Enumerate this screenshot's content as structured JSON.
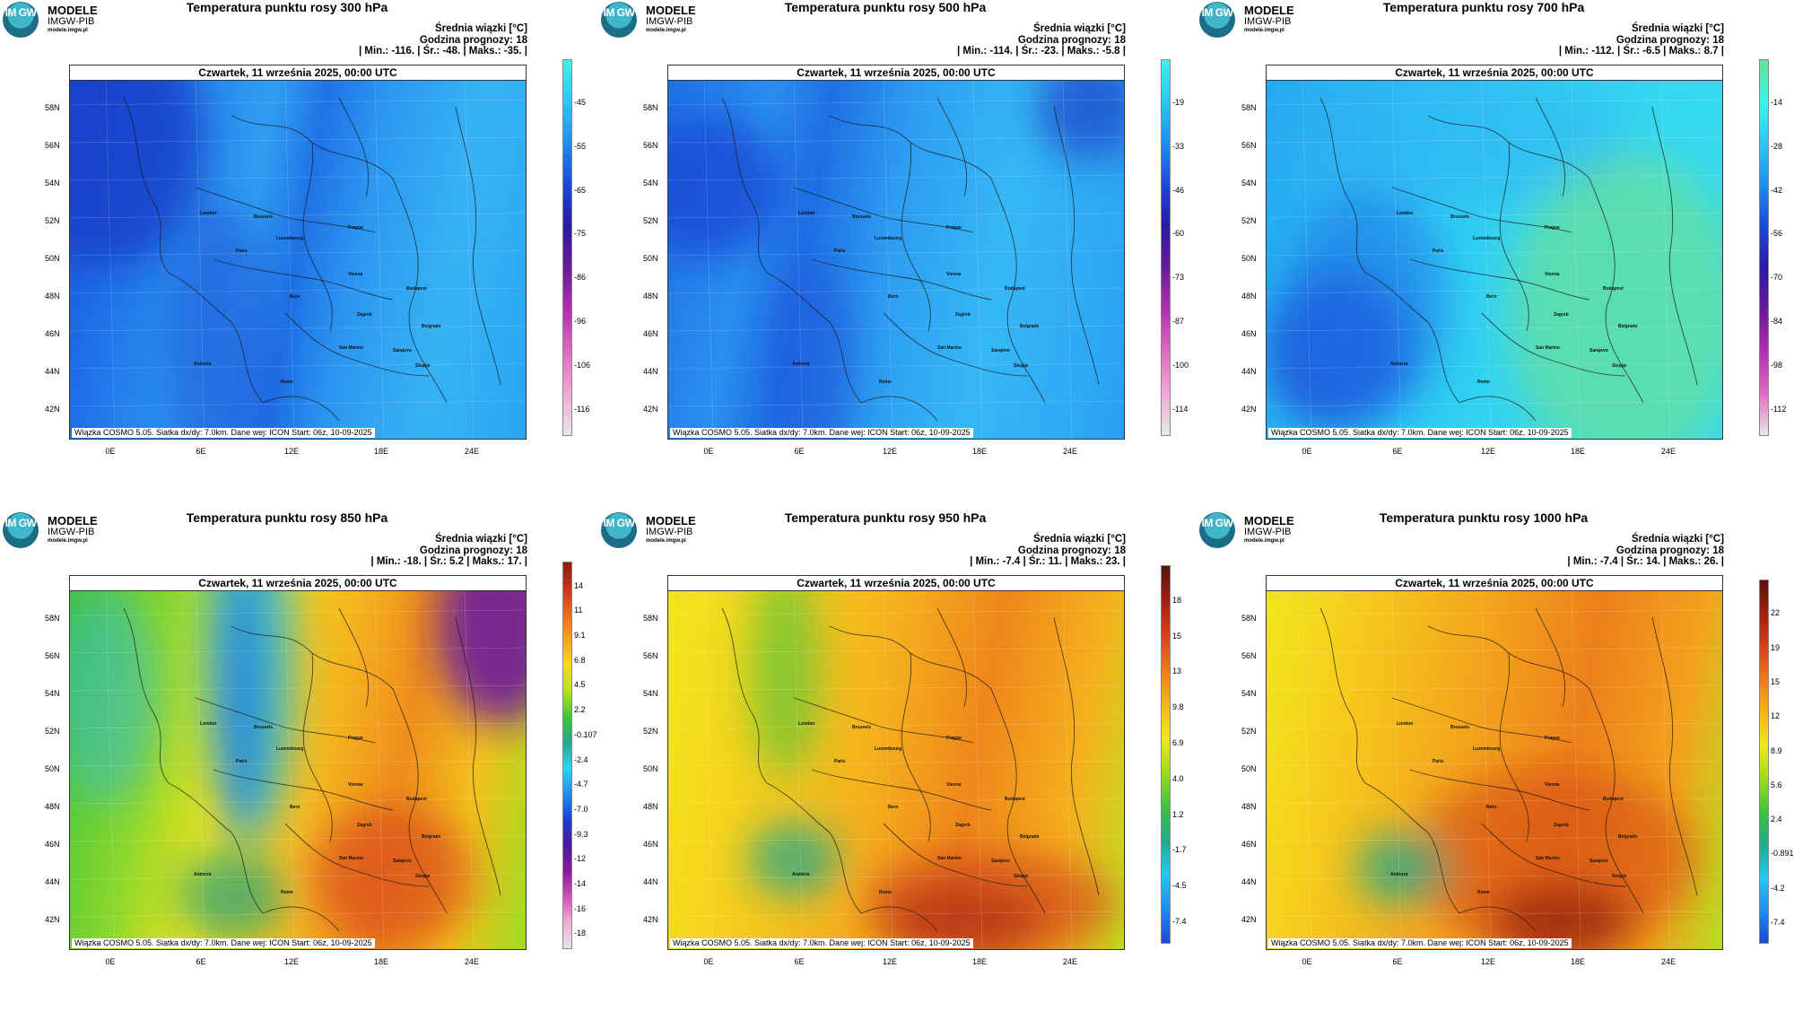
{
  "logo": {
    "badge": "IM GW",
    "title": "MODELE",
    "subtitle": "IMGW-PIB",
    "url": "modele.imgw.pl"
  },
  "stats_labels": {
    "mean": "Średnia wiązki [°C]",
    "forecast_hour": "Godzina prognozy: 18"
  },
  "date_label": "Czwartek, 11 września 2025, 00:00 UTC",
  "footer": "Wiązka COSMO 5.05. Siatka dx/dy: 7.0km. Dane wej: ICON Start: 06z, 10-09-2025",
  "lat_labels": [
    "58N",
    "56N",
    "54N",
    "52N",
    "50N",
    "48N",
    "46N",
    "44N",
    "42N"
  ],
  "lon_labels": [
    "0E",
    "6E",
    "12E",
    "18E",
    "24E"
  ],
  "cities": [
    "London",
    "Brussels",
    "Luxembourg",
    "Paris",
    "Prague",
    "Vienna",
    "Budapest",
    "Bern",
    "Zagreb",
    "Belgrade",
    "San Marino",
    "Sarajevo",
    "Skopje",
    "Andorra",
    "Rome"
  ],
  "panels": [
    {
      "title": "Temperatura punktu rosy 300 hPa",
      "minmax": "| Min.: -116. | Śr.: -48. | Maks.: -35. |",
      "colorbar": [
        "-45",
        "-55",
        "-65",
        "-75",
        "-86",
        "-96",
        "-106",
        "-116"
      ],
      "colorbar_colors": [
        "#3ff2ea",
        "#2ec6f2",
        "#1e8df0",
        "#1c47d8",
        "#2a1ba3",
        "#6a1a9c",
        "#b32fb0",
        "#e26ac2",
        "#f0a8d6",
        "#e8e8e8"
      ],
      "field": "cold300"
    },
    {
      "title": "Temperatura punktu rosy 500 hPa",
      "minmax": "| Min.: -114. | Śr.: -23. | Maks.: -5.8 |",
      "colorbar": [
        "-19",
        "-33",
        "-46",
        "-60",
        "-73",
        "-87",
        "-100",
        "-114"
      ],
      "colorbar_colors": [
        "#3ff2ea",
        "#2ec6f2",
        "#1e8df0",
        "#1c47d8",
        "#2a1ba3",
        "#6a1a9c",
        "#b32fb0",
        "#e26ac2",
        "#f0a8d6",
        "#e8e8e8"
      ],
      "field": "cold500"
    },
    {
      "title": "Temperatura punktu rosy 700 hPa",
      "minmax": "| Min.: -112. | Śr.: -6.5 | Maks.: 8.7 |",
      "colorbar": [
        "-14",
        "-28",
        "-42",
        "-56",
        "-70",
        "-84",
        "-98",
        "-112"
      ],
      "colorbar_colors": [
        "#5fe39a",
        "#3ff2ea",
        "#2ec6f2",
        "#1e8df0",
        "#1c47d8",
        "#2a1ba3",
        "#6a1a9c",
        "#b32fb0",
        "#e26ac2",
        "#e8e8e8"
      ],
      "field": "cold700"
    },
    {
      "title": "Temperatura punktu rosy 850 hPa",
      "minmax": "| Min.: -18. | Śr.: 5.2 | Maks.: 17. |",
      "colorbar": [
        "14",
        "11",
        "9.1",
        "6.8",
        "4.5",
        "2.2",
        "-0.107",
        "-2.4",
        "-4.7",
        "-7.0",
        "-9.3",
        "-12",
        "-14",
        "-16",
        "-18"
      ],
      "colorbar_colors": [
        "#8a1c0c",
        "#c8321a",
        "#ee6a1a",
        "#f6a21d",
        "#f6dc1c",
        "#b8e11d",
        "#3fc43a",
        "#22a98c",
        "#29d5f0",
        "#1e8df0",
        "#1c3fd1",
        "#4a1aa0",
        "#8a1a9c",
        "#d14fb8",
        "#f0b0d8",
        "#e6e6e6"
      ],
      "field": "warm850"
    },
    {
      "title": "Temperatura punktu rosy 950 hPa",
      "minmax": "| Min.: -7.4 | Śr.: 11. | Maks.: 23. |",
      "colorbar": [
        "18",
        "15",
        "13",
        "9.8",
        "6.9",
        "4.0",
        "1.2",
        "-1.7",
        "-4.5",
        "-7.4"
      ],
      "colorbar_colors": [
        "#5a1208",
        "#a2200f",
        "#d4401a",
        "#ee7a1a",
        "#f6b41d",
        "#f2e61c",
        "#9fdc22",
        "#3fc43a",
        "#22a98c",
        "#29c8f0",
        "#1e8df0",
        "#1c47d8"
      ],
      "field": "warm950"
    },
    {
      "title": "Temperatura punktu rosy 1000 hPa",
      "minmax": "| Min.: -7.4 | Śr.: 14. | Maks.: 26. |",
      "colorbar": [
        "22",
        "19",
        "15",
        "12",
        "8.9",
        "5.6",
        "2.4",
        "-0.891",
        "-4.2",
        "-7.4"
      ],
      "colorbar_colors": [
        "#5a1208",
        "#a2200f",
        "#d4401a",
        "#ee7a1a",
        "#f6b41d",
        "#f2e61c",
        "#9fdc22",
        "#3fc43a",
        "#22a98c",
        "#29c8f0",
        "#1e8df0",
        "#1c47d8"
      ],
      "field": "warm1000"
    }
  ]
}
